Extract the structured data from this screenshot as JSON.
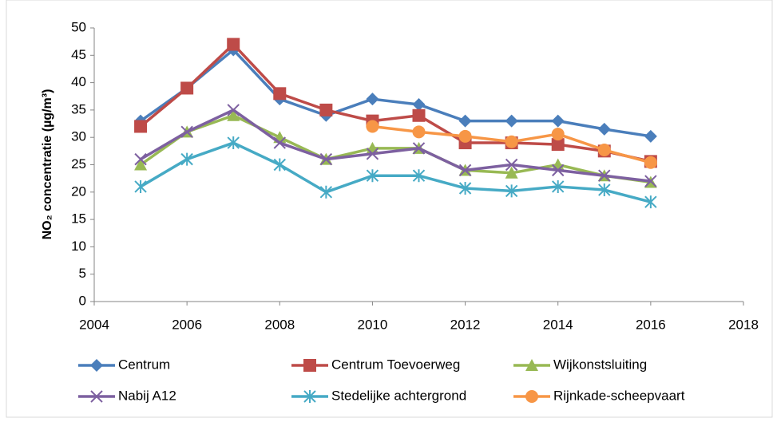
{
  "chart_data": {
    "type": "line",
    "y_label": "NO₂ concentratie (µg/m³)",
    "x": [
      2005,
      2006,
      2007,
      2008,
      2009,
      2010,
      2011,
      2012,
      2013,
      2014,
      2015,
      2016
    ],
    "xlim": [
      2004,
      2018
    ],
    "xticks": [
      2004,
      2006,
      2008,
      2010,
      2012,
      2014,
      2016,
      2018
    ],
    "ylim": [
      0,
      50
    ],
    "yticks": [
      0,
      5,
      10,
      15,
      20,
      25,
      30,
      35,
      40,
      45,
      50
    ],
    "grid": false,
    "legend": "bottom",
    "series": [
      {
        "name": "Centrum",
        "color": "#4a7ebb",
        "marker": "diamond",
        "values": [
          33,
          39,
          46,
          37,
          34,
          37,
          36,
          33,
          33,
          33,
          31.5,
          30.2
        ]
      },
      {
        "name": "Centrum Toevoerweg",
        "color": "#be4b48",
        "marker": "square",
        "values": [
          32,
          39,
          47,
          38,
          35,
          33,
          34,
          29,
          29,
          28.7,
          27.5,
          25.6
        ]
      },
      {
        "name": "Wijkonstsluiting",
        "color": "#98b954",
        "marker": "triangle",
        "values": [
          25,
          31,
          34,
          30,
          26,
          28,
          28,
          24,
          23.5,
          25,
          23,
          21.8
        ]
      },
      {
        "name": "Nabij A12",
        "color": "#7d60a0",
        "marker": "x",
        "values": [
          26,
          31,
          35,
          29,
          26,
          27,
          28,
          24,
          25,
          24,
          23,
          22
        ]
      },
      {
        "name": "Stedelijke achtergrond",
        "color": "#46aac5",
        "marker": "star",
        "values": [
          21,
          26,
          29,
          25,
          20,
          23,
          23,
          20.7,
          20.2,
          21,
          20.4,
          18.2
        ]
      },
      {
        "name": "Rijnkade-scheepvaart",
        "color": "#f79646",
        "marker": "circle",
        "values": [
          null,
          null,
          null,
          null,
          null,
          32,
          31,
          30.2,
          29.2,
          30.6,
          27.7,
          25.4
        ]
      }
    ]
  }
}
